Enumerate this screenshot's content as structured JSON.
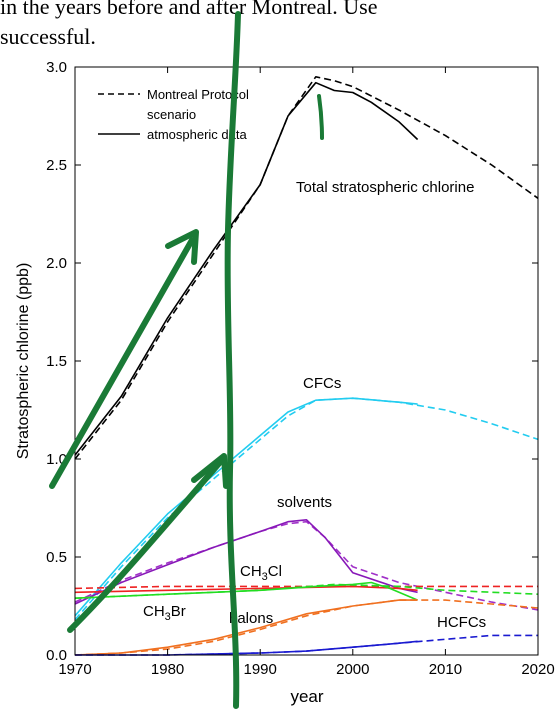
{
  "header": {
    "line1": "in the years before and after Montreal. Use",
    "line2": "successful."
  },
  "chart_data": {
    "type": "line",
    "xlabel": "year",
    "ylabel": "Stratospheric chlorine (ppb)",
    "xlim": [
      1970,
      2020
    ],
    "ylim": [
      0.0,
      3.0
    ],
    "xticks": [
      1970,
      1980,
      1990,
      2000,
      2010,
      2020
    ],
    "yticks": [
      0.0,
      0.5,
      1.0,
      1.5,
      2.0,
      2.5,
      3.0
    ],
    "ytick_labels": [
      "0.0",
      "0.5",
      "1.0",
      "1.5",
      "2.0",
      "2.5",
      "3.0"
    ],
    "legend": {
      "placement": "top-left",
      "scenario_label_1": "Montreal Protocol",
      "scenario_label_2": "scenario",
      "data_label": "atmospheric data"
    },
    "annotations": {
      "total": "Total stratospheric chlorine",
      "cfcs": "CFCs",
      "solvents": "solvents",
      "ch3cl": "CH3Cl",
      "ch3br": "CH3Br",
      "halons": "halons",
      "hcfcs": "HCFCs"
    },
    "series": [
      {
        "key": "total",
        "style": "dashed",
        "color": "#000000",
        "x": [
          1970,
          1975,
          1980,
          1985,
          1990,
          1993,
          1996,
          1998,
          2000,
          2005,
          2010,
          2015,
          2020
        ],
        "y": [
          1.0,
          1.3,
          1.7,
          2.05,
          2.4,
          2.75,
          2.95,
          2.93,
          2.9,
          2.78,
          2.65,
          2.5,
          2.33
        ]
      },
      {
        "key": "total",
        "style": "solid",
        "color": "#000000",
        "x": [
          1970,
          1975,
          1980,
          1985,
          1990,
          1993,
          1996,
          1998,
          2000,
          2002,
          2005,
          2007
        ],
        "y": [
          1.02,
          1.32,
          1.72,
          2.07,
          2.4,
          2.75,
          2.92,
          2.88,
          2.87,
          2.82,
          2.72,
          2.63
        ]
      },
      {
        "key": "cfcs",
        "style": "dashed",
        "color": "#22ccf0",
        "x": [
          1970,
          1975,
          1980,
          1985,
          1990,
          1993,
          1996,
          2000,
          2005,
          2010,
          2015,
          2020
        ],
        "y": [
          0.18,
          0.45,
          0.7,
          0.9,
          1.1,
          1.22,
          1.3,
          1.31,
          1.29,
          1.25,
          1.18,
          1.1
        ]
      },
      {
        "key": "cfcs",
        "style": "solid",
        "color": "#22ccf0",
        "x": [
          1970,
          1975,
          1980,
          1985,
          1990,
          1993,
          1996,
          2000,
          2005,
          2007
        ],
        "y": [
          0.2,
          0.47,
          0.72,
          0.92,
          1.12,
          1.24,
          1.3,
          1.31,
          1.29,
          1.28
        ]
      },
      {
        "key": "solvents",
        "style": "dashed",
        "color": "#a030c8",
        "x": [
          1970,
          1975,
          1980,
          1985,
          1990,
          1993,
          1995,
          1997,
          2000,
          2005,
          2010,
          2015,
          2020
        ],
        "y": [
          0.27,
          0.38,
          0.47,
          0.55,
          0.63,
          0.67,
          0.68,
          0.6,
          0.45,
          0.37,
          0.32,
          0.27,
          0.23
        ]
      },
      {
        "key": "solvents",
        "style": "solid",
        "color": "#8818b8",
        "x": [
          1970,
          1975,
          1980,
          1985,
          1990,
          1993,
          1995,
          1997,
          2000,
          2005,
          2007
        ],
        "y": [
          0.26,
          0.37,
          0.46,
          0.55,
          0.63,
          0.68,
          0.69,
          0.6,
          0.42,
          0.34,
          0.32
        ]
      },
      {
        "key": "ch3cl",
        "style": "dashed",
        "color": "#ee2222",
        "x": [
          1970,
          1980,
          1990,
          2000,
          2010,
          2020
        ],
        "y": [
          0.34,
          0.35,
          0.35,
          0.35,
          0.35,
          0.35
        ]
      },
      {
        "key": "ch3cl",
        "style": "solid",
        "color": "#ee2222",
        "x": [
          1970,
          1980,
          1990,
          2000,
          2005,
          2007
        ],
        "y": [
          0.32,
          0.33,
          0.34,
          0.35,
          0.34,
          0.33
        ]
      },
      {
        "key": "ch3br",
        "style": "dashed",
        "color": "#22dd22",
        "x": [
          1970,
          1980,
          1990,
          1998,
          2005,
          2010,
          2020
        ],
        "y": [
          0.29,
          0.31,
          0.33,
          0.36,
          0.35,
          0.33,
          0.31
        ]
      },
      {
        "key": "ch3br",
        "style": "solid",
        "color": "#22dd22",
        "x": [
          1970,
          1975,
          1980,
          1985,
          1990,
          1993,
          1996,
          2000,
          2002,
          2004,
          2007
        ],
        "y": [
          0.29,
          0.3,
          0.31,
          0.32,
          0.33,
          0.34,
          0.35,
          0.36,
          0.37,
          0.34,
          0.28
        ]
      },
      {
        "key": "halons",
        "style": "dashed",
        "color": "#f07020",
        "x": [
          1970,
          1975,
          1980,
          1985,
          1990,
          1995,
          2000,
          2005,
          2010,
          2015,
          2020
        ],
        "y": [
          0.0,
          0.01,
          0.03,
          0.07,
          0.13,
          0.2,
          0.25,
          0.28,
          0.28,
          0.26,
          0.24
        ]
      },
      {
        "key": "halons",
        "style": "solid",
        "color": "#f07020",
        "x": [
          1970,
          1975,
          1980,
          1985,
          1990,
          1995,
          2000,
          2005,
          2007
        ],
        "y": [
          0.0,
          0.01,
          0.04,
          0.08,
          0.14,
          0.21,
          0.25,
          0.28,
          0.28
        ]
      },
      {
        "key": "hcfcs",
        "style": "dashed",
        "color": "#1a1ad0",
        "x": [
          1970,
          1980,
          1990,
          1995,
          2000,
          2005,
          2010,
          2015,
          2020
        ],
        "y": [
          0.0,
          0.0,
          0.01,
          0.02,
          0.04,
          0.06,
          0.08,
          0.1,
          0.1
        ]
      },
      {
        "key": "hcfcs",
        "style": "solid",
        "color": "#1a1ad0",
        "x": [
          1970,
          1980,
          1990,
          1995,
          2000,
          2005,
          2007
        ],
        "y": [
          0.0,
          0.0,
          0.01,
          0.02,
          0.04,
          0.06,
          0.07
        ]
      }
    ]
  }
}
